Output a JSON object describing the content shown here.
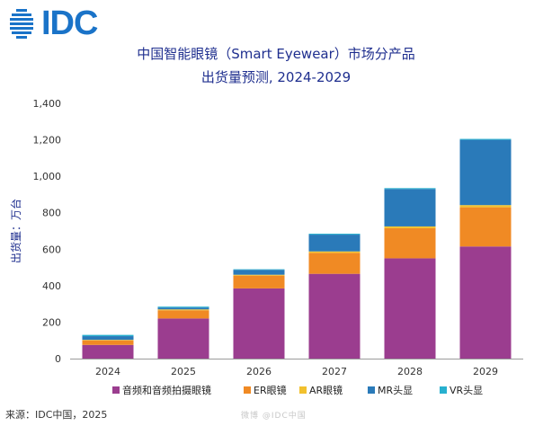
{
  "brand": {
    "logo_text": "IDC",
    "logo_color": "#1a73c8"
  },
  "title": {
    "line1": "中国智能眼镜（Smart Eyewear）市场分产品",
    "line2": "出货量预测, 2024-2029"
  },
  "source": "来源：IDC中国，2025",
  "watermark": "微博 @IDC中国",
  "chart_data": {
    "type": "bar",
    "stacked": true,
    "categories": [
      "2024",
      "2025",
      "2026",
      "2027",
      "2028",
      "2029"
    ],
    "ylabel": "出货量：万台",
    "xlabel": "",
    "ylim": [
      0,
      1400
    ],
    "yticks": [
      0,
      200,
      400,
      600,
      800,
      1000,
      1200,
      1400
    ],
    "ytick_labels": [
      "0",
      "200",
      "400",
      "600",
      "800",
      "1,000",
      "1,200",
      "1,400"
    ],
    "grid": false,
    "legend_position": "bottom",
    "series": [
      {
        "name": "音频和音频拍摄眼镜",
        "color": "#9b3d8f",
        "values": [
          75,
          220,
          385,
          465,
          550,
          615
        ]
      },
      {
        "name": "ER眼镜",
        "color": "#f08a24",
        "values": [
          25,
          45,
          70,
          115,
          165,
          215
        ]
      },
      {
        "name": "AR眼镜",
        "color": "#f2c12e",
        "values": [
          3,
          5,
          5,
          8,
          10,
          12
        ]
      },
      {
        "name": "MR头显",
        "color": "#2a7ab9",
        "values": [
          20,
          10,
          27,
          92,
          205,
          358
        ]
      },
      {
        "name": "VR头显",
        "color": "#27b0cf",
        "values": [
          7,
          5,
          3,
          5,
          5,
          5
        ]
      }
    ]
  }
}
